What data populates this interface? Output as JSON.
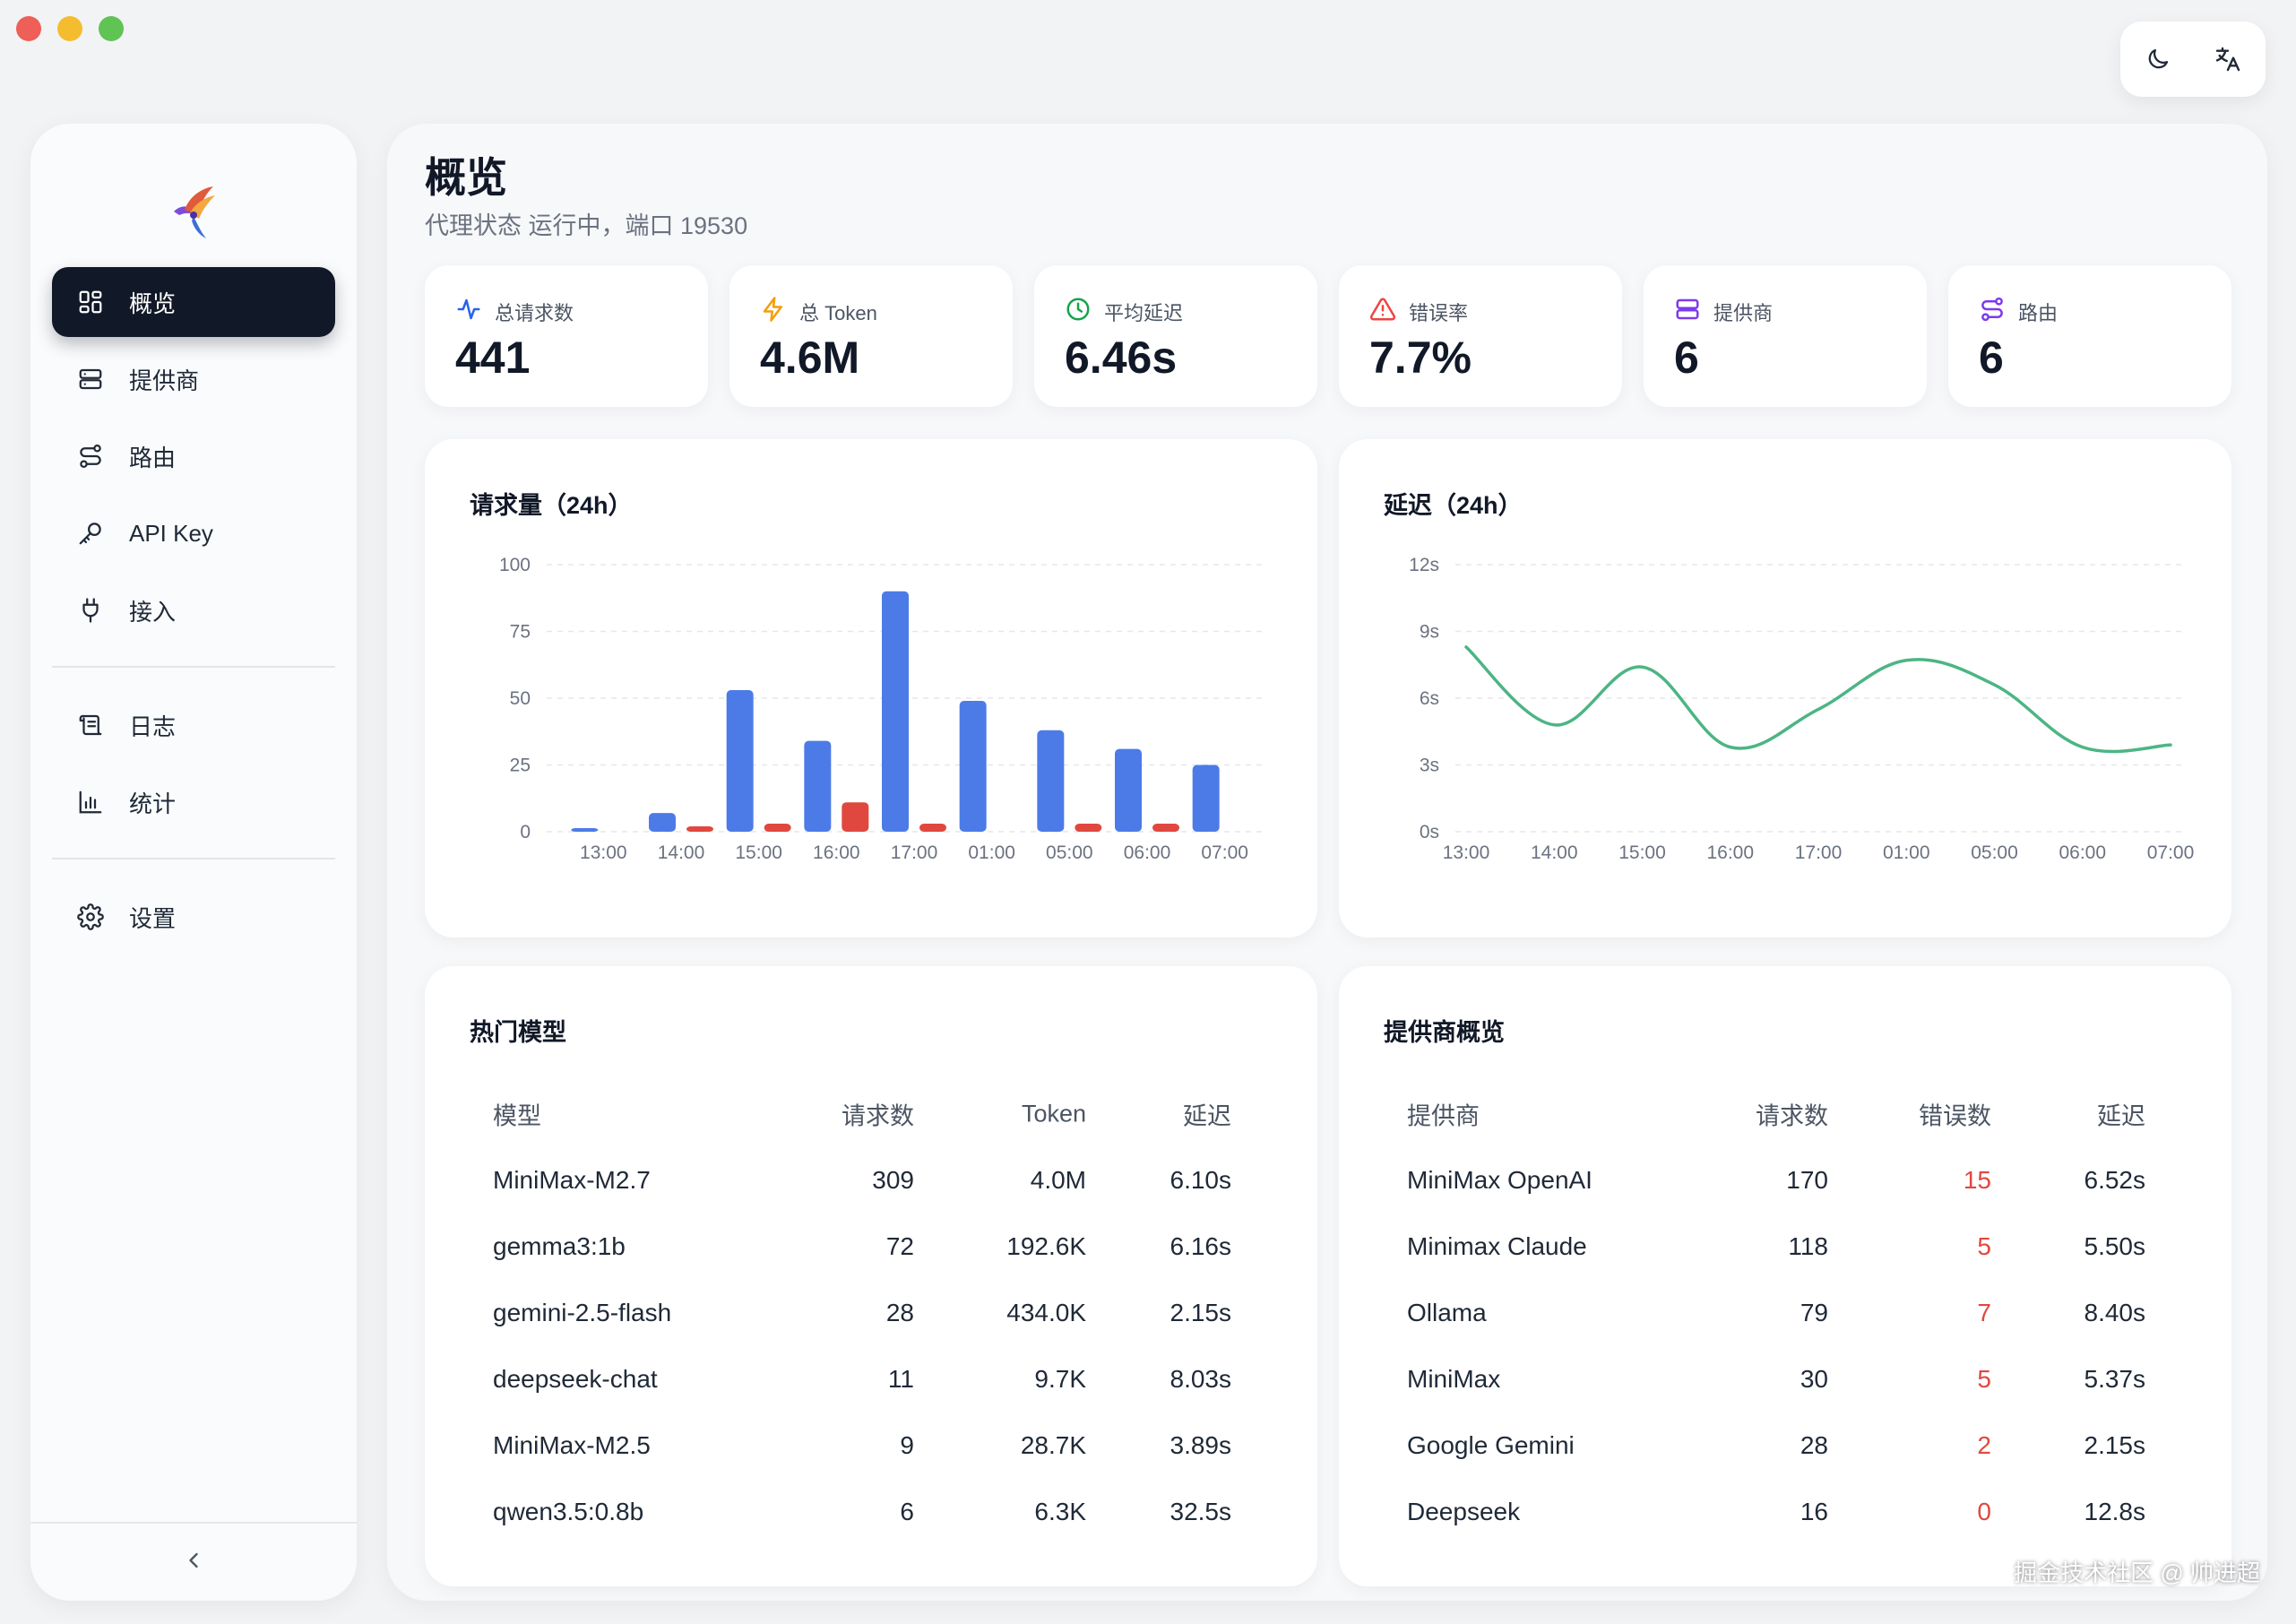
{
  "app": {
    "title": "概览",
    "subtitle": "代理状态 运行中，端口 19530"
  },
  "top_actions": [
    {
      "icon": "moon-icon"
    },
    {
      "icon": "translate-icon"
    }
  ],
  "sidebar": {
    "items": [
      {
        "label": "概览",
        "icon": "dashboard-grid-icon",
        "active": true
      },
      {
        "label": "提供商",
        "icon": "server-icon"
      },
      {
        "label": "路由",
        "icon": "route-icon"
      },
      {
        "label": "API Key",
        "icon": "key-icon"
      },
      {
        "label": "接入",
        "icon": "plug-icon"
      },
      {
        "label": "日志",
        "icon": "scroll-log-icon"
      },
      {
        "label": "统计",
        "icon": "bar-chart-icon"
      },
      {
        "label": "设置",
        "icon": "gear-icon"
      }
    ],
    "collapse_label": "<"
  },
  "stats": [
    {
      "label": "总请求数",
      "value": "441",
      "icon": "activity-icon",
      "color": "#2563eb"
    },
    {
      "label": "总 Token",
      "value": "4.6M",
      "icon": "zap-icon",
      "color": "#f59e0b"
    },
    {
      "label": "平均延迟",
      "value": "6.46s",
      "icon": "clock-icon",
      "color": "#16a34a"
    },
    {
      "label": "错误率",
      "value": "7.7%",
      "icon": "alert-triangle-icon",
      "color": "#ef4444"
    },
    {
      "label": "提供商",
      "value": "6",
      "icon": "server-icon",
      "color": "#7c3aed"
    },
    {
      "label": "路由",
      "value": "6",
      "icon": "route-icon",
      "color": "#7c3aed"
    }
  ],
  "chart_data": [
    {
      "type": "bar",
      "title": "请求量（24h）",
      "categories": [
        "13:00",
        "14:00",
        "15:00",
        "16:00",
        "17:00",
        "01:00",
        "05:00",
        "06:00",
        "07:00"
      ],
      "series": [
        {
          "values": [
            1,
            7,
            53,
            34,
            90,
            49,
            38,
            31,
            25
          ],
          "color": "#4c7be8"
        },
        {
          "values": [
            0,
            2,
            3,
            11,
            3,
            0,
            3,
            3,
            0
          ],
          "color": "#e0483f"
        }
      ],
      "yticks": [
        "0",
        "25",
        "50",
        "75",
        "100"
      ],
      "ylim": [
        0,
        100
      ],
      "grid": true
    },
    {
      "type": "line",
      "title": "延迟（24h）",
      "categories": [
        "13:00",
        "14:00",
        "15:00",
        "16:00",
        "17:00",
        "01:00",
        "05:00",
        "06:00",
        "07:00"
      ],
      "series": [
        {
          "values": [
            8.3,
            4.8,
            7.4,
            3.8,
            5.5,
            7.7,
            6.6,
            3.8,
            3.9
          ],
          "color": "#4cb584"
        }
      ],
      "yticks": [
        "0s",
        "3s",
        "6s",
        "9s",
        "12s"
      ],
      "ylim": [
        0,
        12
      ],
      "grid": true
    }
  ],
  "models_table": {
    "title": "热门模型",
    "headers": [
      "模型",
      "请求数",
      "Token",
      "延迟"
    ],
    "rows": [
      [
        "MiniMax-M2.7",
        "309",
        "4.0M",
        "6.10s"
      ],
      [
        "gemma3:1b",
        "72",
        "192.6K",
        "6.16s"
      ],
      [
        "gemini-2.5-flash",
        "28",
        "434.0K",
        "2.15s"
      ],
      [
        "deepseek-chat",
        "11",
        "9.7K",
        "8.03s"
      ],
      [
        "MiniMax-M2.5",
        "9",
        "28.7K",
        "3.89s"
      ],
      [
        "qwen3.5:0.8b",
        "6",
        "6.3K",
        "32.5s"
      ]
    ]
  },
  "providers_table": {
    "title": "提供商概览",
    "headers": [
      "提供商",
      "请求数",
      "错误数",
      "延迟"
    ],
    "rows": [
      [
        "MiniMax OpenAI",
        "170",
        "15",
        "6.52s"
      ],
      [
        "Minimax Claude",
        "118",
        "5",
        "5.50s"
      ],
      [
        "Ollama",
        "79",
        "7",
        "8.40s"
      ],
      [
        "MiniMax",
        "30",
        "5",
        "5.37s"
      ],
      [
        "Google Gemini",
        "28",
        "2",
        "2.15s"
      ],
      [
        "Deepseek",
        "16",
        "0",
        "12.8s"
      ]
    ],
    "error_color": "#e0483f"
  },
  "watermark": "掘金技术社区 @ 帅进超"
}
